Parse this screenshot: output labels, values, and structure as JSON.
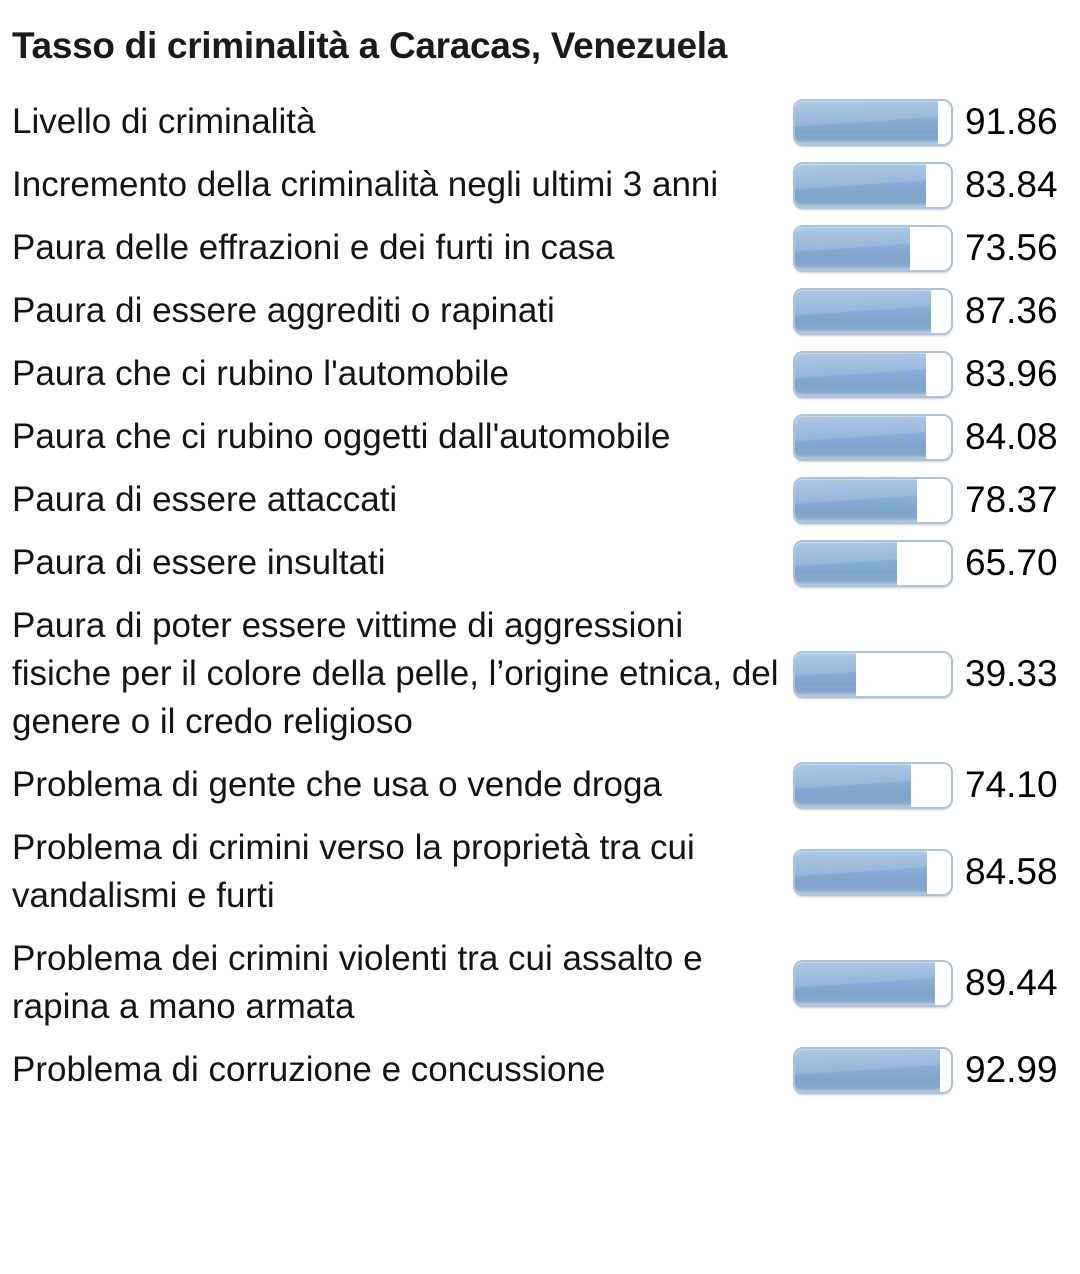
{
  "title": "Tasso di criminalità a Caracas, Venezuela",
  "rows": [
    {
      "label": "Livello di criminalità",
      "value": "91.86"
    },
    {
      "label": "Incremento della criminalità negli ultimi 3 anni",
      "value": "83.84"
    },
    {
      "label": "Paura delle effrazioni e dei furti in casa",
      "value": "73.56"
    },
    {
      "label": "Paura di essere aggrediti o rapinati",
      "value": "87.36"
    },
    {
      "label": "Paura che ci rubino l'automobile",
      "value": "83.96"
    },
    {
      "label": "Paura che ci rubino oggetti dall'automobile",
      "value": "84.08"
    },
    {
      "label": "Paura di essere attaccati",
      "value": "78.37"
    },
    {
      "label": "Paura di essere insultati",
      "value": "65.70"
    },
    {
      "label": "Paura di poter essere vittime di aggressioni fisiche per il colore della pelle, l’origine etnica, del genere o il credo religioso",
      "value": "39.33"
    },
    {
      "label": "Problema di gente che usa o vende droga",
      "value": "74.10"
    },
    {
      "label": "Problema di crimini verso la proprietà tra cui vandalismi e furti",
      "value": "84.58"
    },
    {
      "label": "Problema dei crimini violenti tra cui assalto e rapina a mano armata",
      "value": "89.44"
    },
    {
      "label": "Problema di corruzione e concussione",
      "value": "92.99"
    }
  ],
  "chart_data": {
    "type": "bar",
    "orientation": "horizontal",
    "title": "Tasso di criminalità a Caracas, Venezuela",
    "categories": [
      "Livello di criminalità",
      "Incremento della criminalità negli ultimi 3 anni",
      "Paura delle effrazioni e dei furti in casa",
      "Paura di essere aggrediti o rapinati",
      "Paura che ci rubino l'automobile",
      "Paura che ci rubino oggetti dall'automobile",
      "Paura di essere attaccati",
      "Paura di essere insultati",
      "Paura di poter essere vittime di aggressioni fisiche per il colore della pelle, l’origine etnica, del genere o il credo religioso",
      "Problema di gente che usa o vende droga",
      "Problema di crimini verso la proprietà tra cui vandalismi e furti",
      "Problema dei crimini violenti tra cui assalto e rapina a mano armata",
      "Problema di corruzione e concussione"
    ],
    "values": [
      91.86,
      83.84,
      73.56,
      87.36,
      83.96,
      84.08,
      78.37,
      65.7,
      39.33,
      74.1,
      84.58,
      89.44,
      92.99
    ],
    "value_labels": [
      "91.86",
      "83.84",
      "73.56",
      "87.36",
      "83.96",
      "84.08",
      "78.37",
      "65.70",
      "39.33",
      "74.10",
      "84.58",
      "89.44",
      "92.99"
    ],
    "value_range": [
      0,
      100
    ],
    "legend": false,
    "grid": false
  },
  "colors": {
    "bar_fill": "#86abd2",
    "bar_fill_light": "#9cbcdf",
    "bar_track": "#ffffff",
    "bar_border": "#adc2d8",
    "text": "#141414",
    "background": "#ffffff"
  }
}
